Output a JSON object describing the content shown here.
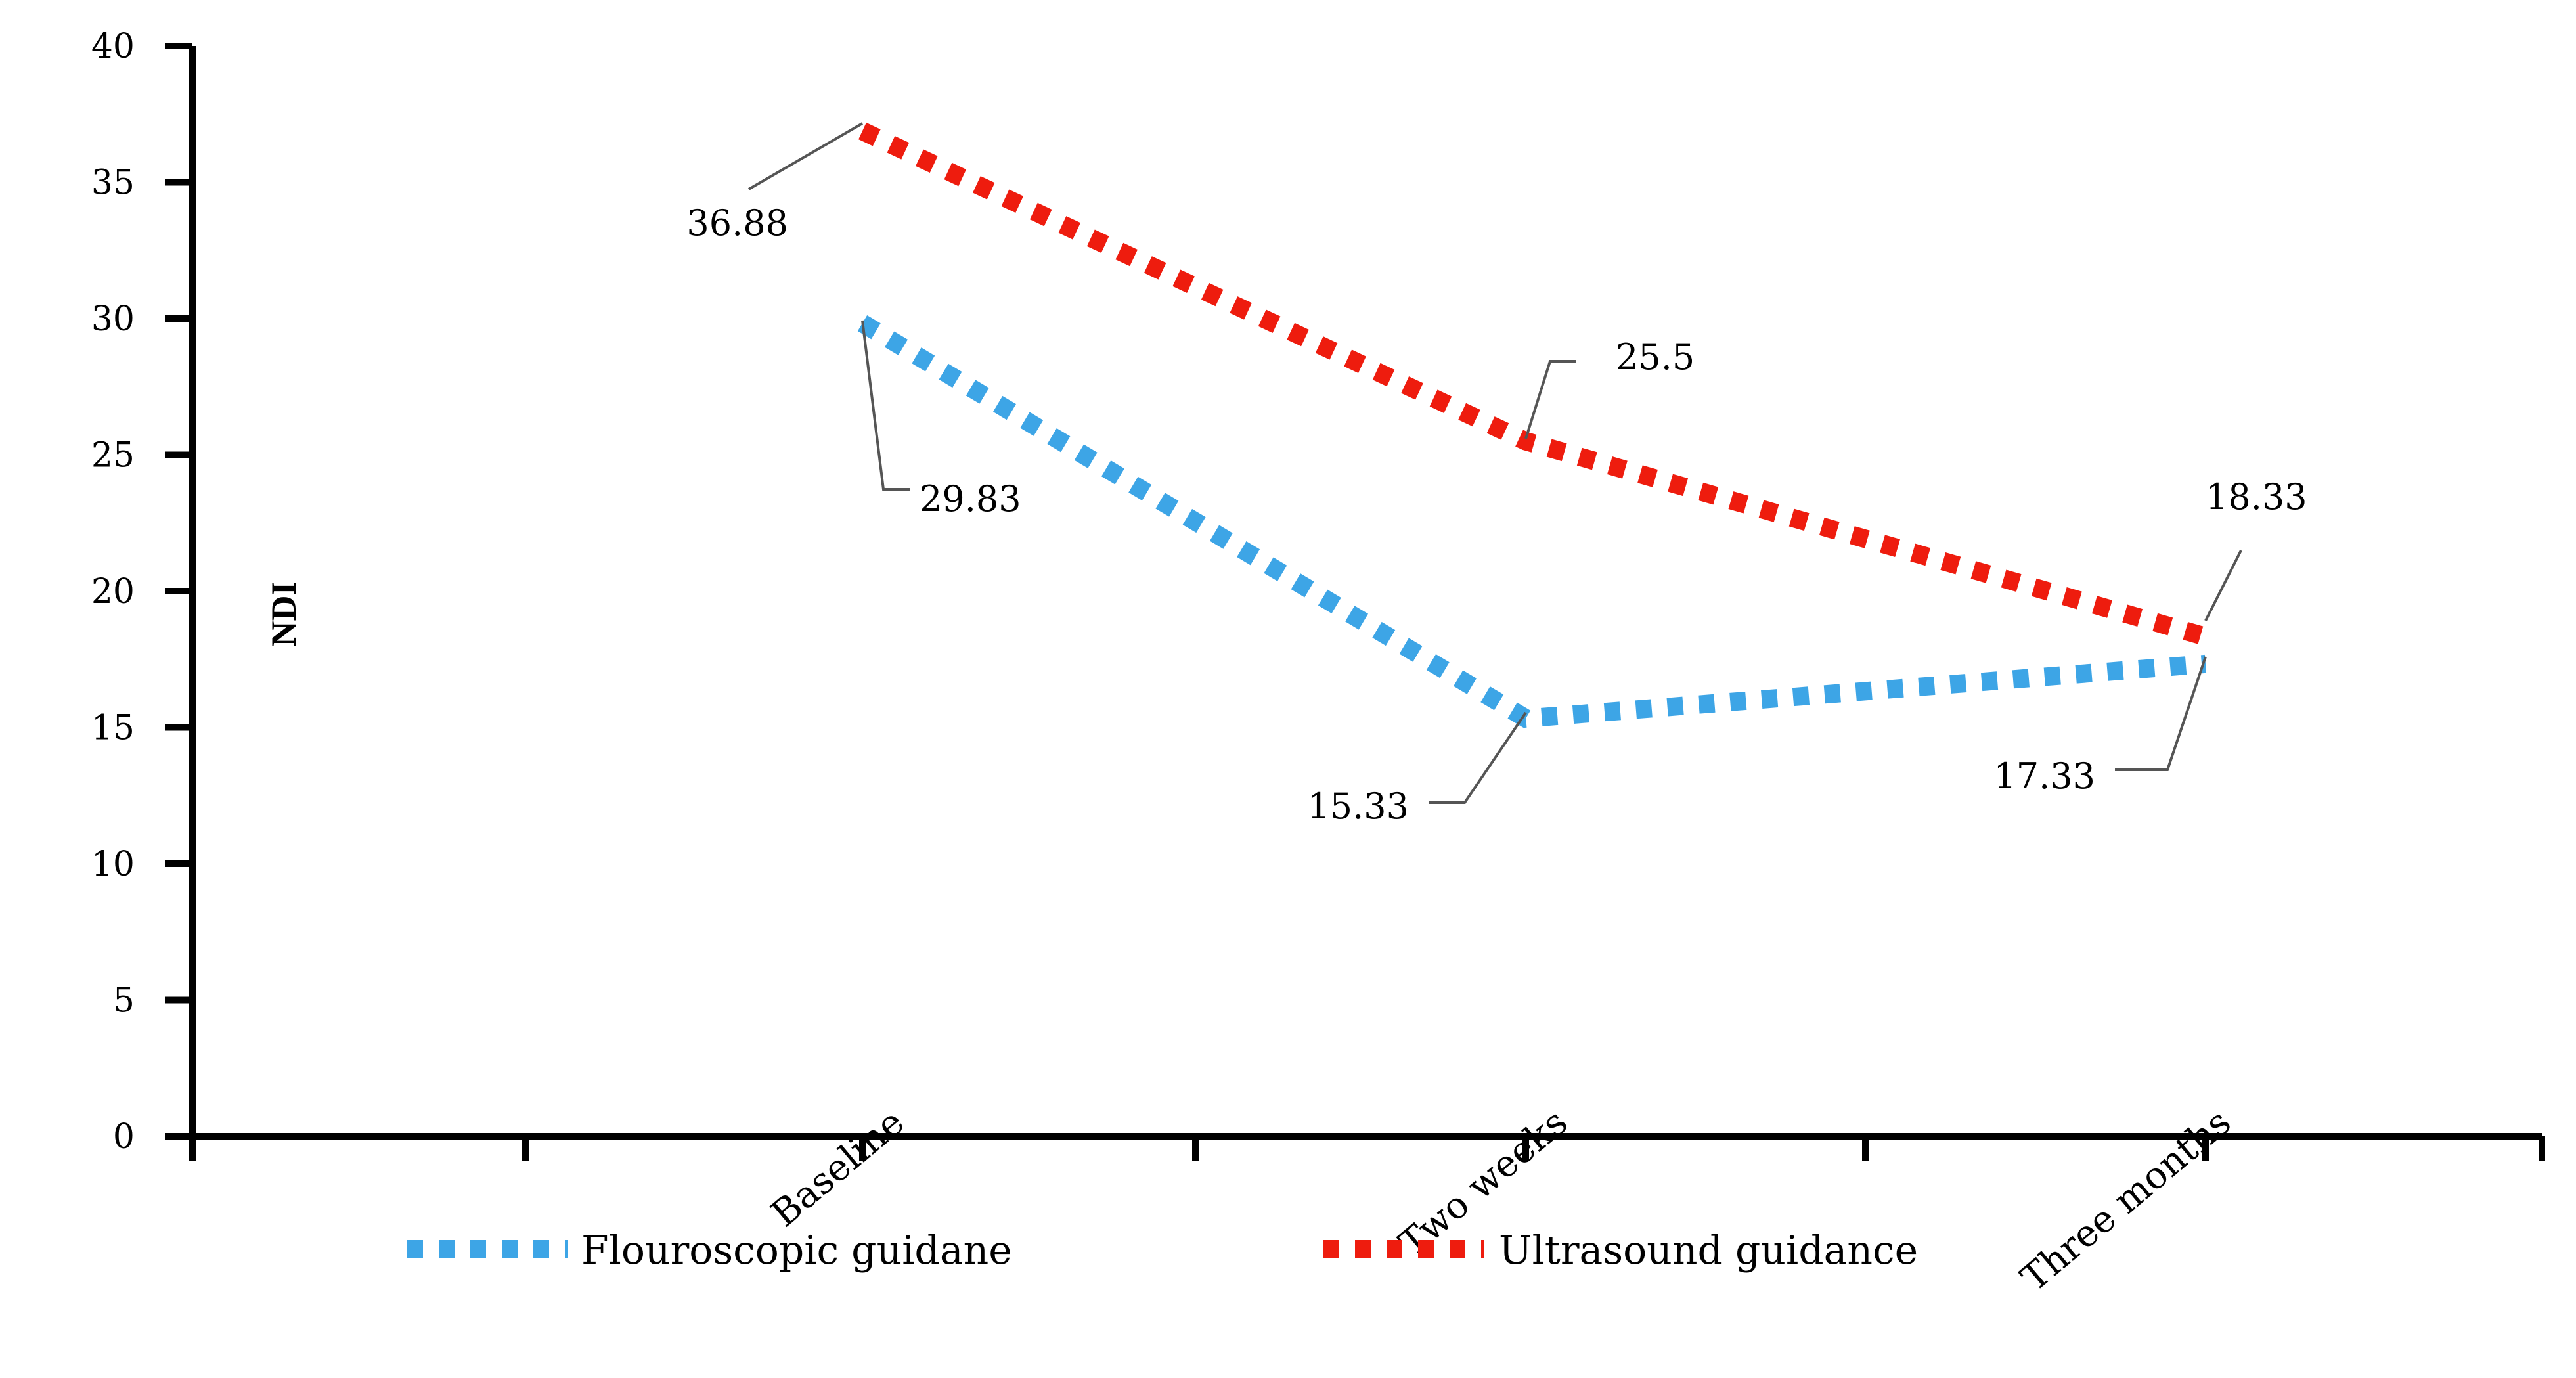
{
  "chart_data": {
    "type": "line",
    "title": "",
    "xlabel": "",
    "ylabel": "NDI",
    "ylim": [
      0,
      40
    ],
    "yticks": [
      0,
      5,
      10,
      15,
      20,
      25,
      30,
      35,
      40
    ],
    "categories": [
      "Baseline",
      "Two weeks",
      "Three months"
    ],
    "grid": false,
    "legend": "bottom",
    "series": [
      {
        "name": "Flouroscopic guidane",
        "color": "#3da5e6",
        "values": [
          29.83,
          15.33,
          17.33
        ],
        "labels": [
          "29.83",
          "15.33",
          "17.33"
        ]
      },
      {
        "name": "Ultrasound guidance",
        "color": "#ee1c0e",
        "values": [
          36.88,
          25.5,
          18.33
        ],
        "labels": [
          "36.88",
          "25.5",
          "18.33"
        ]
      }
    ]
  }
}
